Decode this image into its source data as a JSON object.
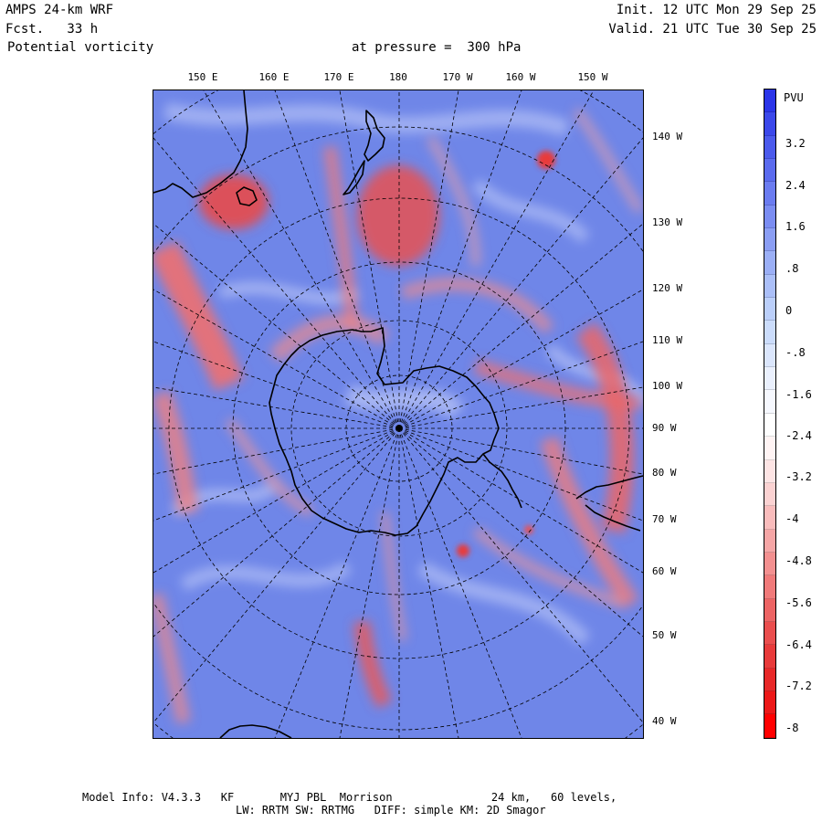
{
  "header": {
    "model": "AMPS 24-km WRF",
    "forecast": "Fcst.   33 h",
    "field": "Potential vorticity",
    "level": "at pressure =  300 hPa",
    "init": "Init. 12 UTC Mon 29 Sep 25",
    "valid": "Valid. 21 UTC Tue 30 Sep 25"
  },
  "longitude_labels_top": [
    "150 E",
    "160 E",
    "170 E",
    "180",
    "170 W",
    "160 W",
    "150 W"
  ],
  "longitude_labels_right": [
    "140 W",
    "130 W",
    "120 W",
    "110 W",
    "100 W",
    "90 W",
    "80 W",
    "70 W",
    "60 W",
    "50 W",
    "40 W"
  ],
  "colorbar": {
    "units": "PVU",
    "labels": [
      "3.2",
      "2.4",
      "1.6",
      ".8",
      "0",
      "-.8",
      "-1.6",
      "-2.4",
      "-3.2",
      "-4",
      "-4.8",
      "-5.6",
      "-6.4",
      "-7.2",
      "-8"
    ],
    "colors": [
      "#2b35e8",
      "#3b48ea",
      "#4b5aec",
      "#5b6bee",
      "#6b7cf0",
      "#7b8df2",
      "#8b9ef4",
      "#9baff6",
      "#abbff8",
      "#bbcffa",
      "#cbdcfb",
      "#dbe6fc",
      "#eaf0fd",
      "#f6f8fe",
      "#ffffff",
      "#fff4f4",
      "#fde4e4",
      "#fbd2d2",
      "#f9bcbc",
      "#f6a6a6",
      "#f39090",
      "#f07a7a",
      "#ed6464",
      "#ea4e4e",
      "#e83a3a",
      "#e82828",
      "#ec1818",
      "#ff0000"
    ],
    "neutral_color": "#ffffff",
    "positive_color": "#6f86e8",
    "negative_color": "#ef6f6f"
  },
  "footer": {
    "line1": "Model Info: V4.3.3   KF       MYJ PBL  Morrison               24 km,   60 levels,",
    "line2": "LW: RRTM SW: RRTMG   DIFF: simple KM: 2D Smagor"
  }
}
